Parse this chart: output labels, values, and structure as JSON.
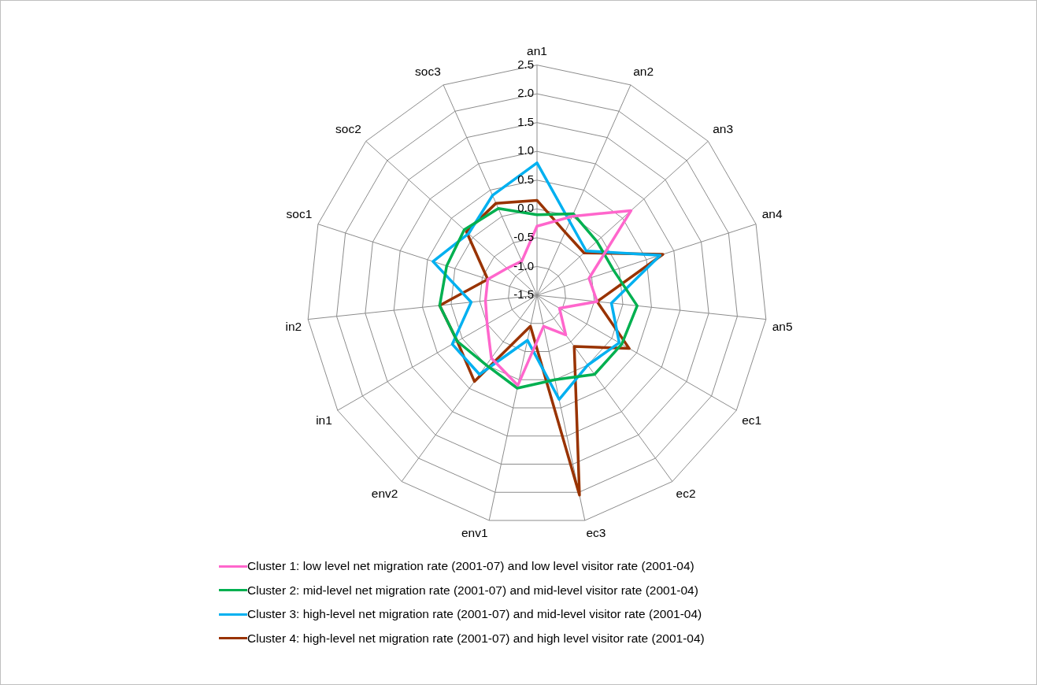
{
  "chart_data": {
    "type": "radar",
    "categories": [
      "an1",
      "an2",
      "an3",
      "an4",
      "an5",
      "ec1",
      "ec2",
      "ec3",
      "env1",
      "env2",
      "in1",
      "in2",
      "soc1",
      "soc2",
      "soc3"
    ],
    "series": [
      {
        "name": "Cluster 1: low level net migration rate (2001-07) and low level visitor rate (2001-04)",
        "color": "#ff66cc",
        "values": [
          -0.3,
          0.0,
          0.7,
          -0.55,
          -0.45,
          -1.05,
          -0.65,
          -0.95,
          0.1,
          -0.15,
          -0.5,
          -0.6,
          -0.6,
          -0.8,
          -0.85
        ]
      },
      {
        "name": "Cluster 2: mid-level net migration rate (2001-07) and mid-level visitor rate (2001-04)",
        "color": "#00b050",
        "values": [
          -0.1,
          0.05,
          -0.1,
          -0.1,
          0.25,
          0.2,
          0.2,
          0.0,
          0.15,
          0.0,
          0.1,
          0.2,
          0.15,
          0.2,
          0.15
        ]
      },
      {
        "name": "Cluster 3: high-level net migration rate (2001-07) and mid-level visitor rate (2001-04)",
        "color": "#00b0f0",
        "values": [
          0.8,
          -0.1,
          -0.35,
          0.75,
          -0.2,
          0.15,
          0.0,
          0.35,
          -0.7,
          0.2,
          0.2,
          -0.35,
          0.4,
          0.1,
          0.4
        ]
      },
      {
        "name": "Cluster 4: high-level net migration rate (2001-07) and high level visitor rate (2001-04)",
        "color": "#993300",
        "values": [
          0.15,
          -0.3,
          -0.4,
          0.8,
          -0.45,
          0.35,
          -0.4,
          2.05,
          -0.95,
          0.35,
          0.1,
          0.2,
          -0.6,
          0.15,
          0.25
        ]
      }
    ],
    "ylim": [
      -1.5,
      2.5
    ],
    "yticks": [
      -1.5,
      {
        "value": -1,
        "label": "-1.0"
      },
      -0.5,
      {
        "value": 0,
        "label": "0.0"
      },
      0.5,
      {
        "value": 1,
        "label": "1.0"
      },
      1.5,
      {
        "value": 2,
        "label": "2.0"
      },
      2.5
    ],
    "grid": true,
    "legend": "bottom",
    "marker": "none",
    "line_style": "solid"
  }
}
